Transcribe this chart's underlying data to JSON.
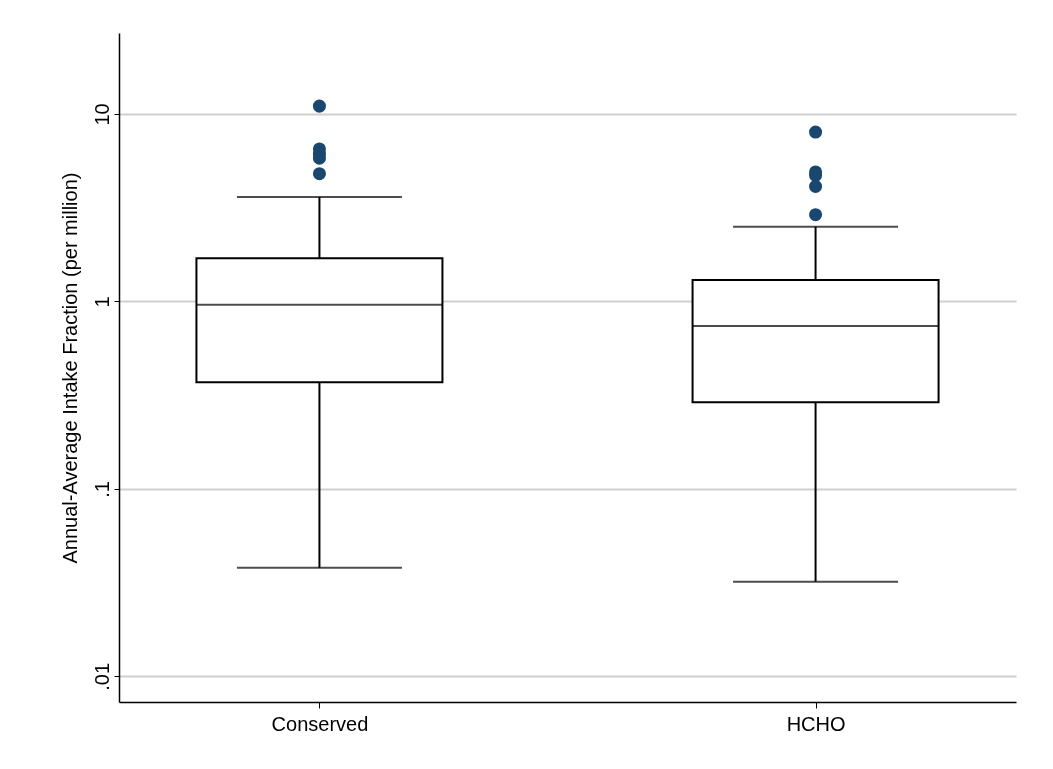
{
  "chart_data": {
    "type": "box",
    "ylabel": "Annual-Average Intake Fraction (per million)",
    "categories": [
      "Conserved",
      "HCHO"
    ],
    "boxes": [
      {
        "low": 0.038,
        "q1": 0.37,
        "median": 0.96,
        "q3": 1.7,
        "high": 3.6,
        "outliers": [
          11,
          6.5,
          6.1,
          5.8,
          4.8
        ]
      },
      {
        "low": 0.032,
        "q1": 0.29,
        "median": 0.74,
        "q3": 1.3,
        "high": 2.5,
        "outliers": [
          8,
          4.9,
          4.7,
          4.1,
          2.9
        ]
      }
    ],
    "log": "y",
    "ylim": [
      0.0073,
      27
    ],
    "yticks": [
      {
        "value": 0.01,
        "label": ".01"
      },
      {
        "value": 0.1,
        "label": ".1"
      },
      1,
      10
    ],
    "grid": "y"
  }
}
